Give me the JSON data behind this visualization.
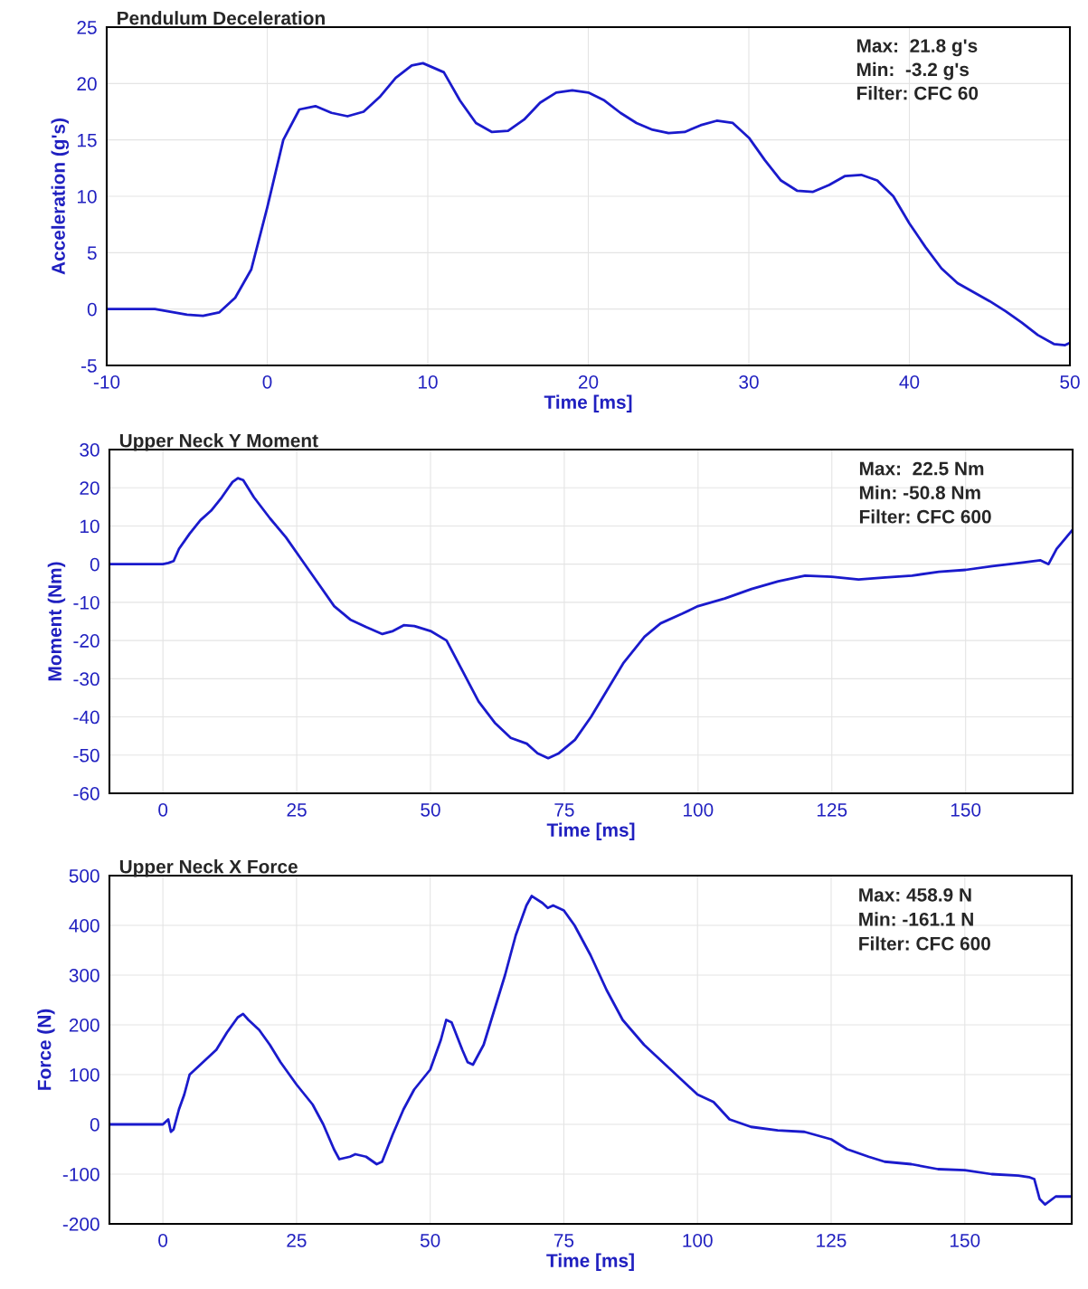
{
  "chart_data": [
    {
      "type": "line",
      "title": "Pendulum Deceleration",
      "xlabel": "Time [ms]",
      "ylabel": "Acceleration (g's)",
      "annotations": [
        "Max:  21.8 g's",
        "Min:  -3.2 g's",
        "Filter: CFC 60"
      ],
      "xlim": [
        -10,
        50
      ],
      "xticks": [
        -10,
        0,
        10,
        20,
        30,
        40,
        50
      ],
      "ylim": [
        -5,
        25
      ],
      "yticks": [
        -5,
        0,
        5,
        10,
        15,
        20,
        25
      ],
      "grid": true,
      "series": [
        {
          "color": "#1a1acc",
          "x": [
            -10,
            -7,
            -5,
            -4,
            -3,
            -2,
            -1,
            0,
            1,
            2,
            3,
            4,
            5,
            6,
            7,
            8,
            9,
            9.7,
            11,
            12,
            13,
            14,
            15,
            16,
            17,
            18,
            19,
            20,
            21,
            22,
            23,
            24,
            25,
            26,
            27,
            28,
            29,
            30,
            31,
            32,
            33,
            34,
            35,
            36,
            37,
            38,
            39,
            40,
            41,
            42,
            43,
            44,
            45,
            46,
            47,
            48,
            49,
            49.7,
            50
          ],
          "values": [
            0,
            0,
            -0.5,
            -0.6,
            -0.3,
            1,
            3.5,
            9,
            15,
            17.7,
            18,
            17.4,
            17.1,
            17.5,
            18.8,
            20.5,
            21.6,
            21.8,
            21,
            18.5,
            16.5,
            15.7,
            15.8,
            16.8,
            18.3,
            19.2,
            19.4,
            19.2,
            18.5,
            17.4,
            16.5,
            15.9,
            15.6,
            15.7,
            16.3,
            16.7,
            16.5,
            15.2,
            13.2,
            11.4,
            10.5,
            10.4,
            11,
            11.8,
            11.9,
            11.4,
            10,
            7.6,
            5.5,
            3.6,
            2.3,
            1.5,
            0.7,
            -0.2,
            -1.2,
            -2.3,
            -3.1,
            -3.2,
            -3.0
          ]
        }
      ]
    },
    {
      "type": "line",
      "title": "Upper Neck Y Moment",
      "xlabel": "Time [ms]",
      "ylabel": "Moment (Nm)",
      "annotations": [
        "Max:  22.5 Nm",
        "Min: -50.8 Nm",
        "Filter: CFC 600"
      ],
      "xlim": [
        -10,
        170
      ],
      "xticks": [
        0,
        25,
        50,
        75,
        100,
        125,
        150
      ],
      "ylim": [
        -60,
        30
      ],
      "yticks": [
        -60,
        -50,
        -40,
        -30,
        -20,
        -10,
        0,
        10,
        20,
        30
      ],
      "grid": true,
      "series": [
        {
          "color": "#1a1acc",
          "x": [
            -10,
            0,
            1,
            2,
            3,
            5,
            7,
            9,
            11,
            13,
            14,
            15,
            17,
            20,
            23,
            26,
            29,
            32,
            35,
            38,
            41,
            43,
            45,
            47,
            50,
            53,
            56,
            59,
            62,
            65,
            68,
            70,
            72,
            74,
            77,
            80,
            83,
            86,
            90,
            93,
            97,
            100,
            105,
            110,
            115,
            120,
            125,
            130,
            135,
            140,
            145,
            150,
            155,
            160,
            164,
            165.5,
            167,
            170
          ],
          "values": [
            0,
            0,
            0.3,
            0.8,
            4,
            8,
            11.5,
            14,
            17.5,
            21.5,
            22.5,
            22,
            17.5,
            12,
            7,
            1,
            -5,
            -11,
            -14.5,
            -16.5,
            -18.3,
            -17.5,
            -16,
            -16.2,
            -17.5,
            -20,
            -28,
            -36,
            -41.5,
            -45.5,
            -47,
            -49.5,
            -50.8,
            -49.5,
            -46,
            -40,
            -33,
            -26,
            -19,
            -15.5,
            -13,
            -11,
            -9,
            -6.5,
            -4.5,
            -3,
            -3.3,
            -4,
            -3.5,
            -3,
            -2,
            -1.5,
            -0.5,
            0.3,
            1,
            0,
            4,
            9
          ]
        }
      ]
    },
    {
      "type": "line",
      "title": "Upper Neck X Force",
      "xlabel": "Time [ms]",
      "ylabel": "Force (N)",
      "annotations": [
        "Max: 458.9 N",
        "Min: -161.1 N",
        "Filter: CFC 600"
      ],
      "xlim": [
        -10,
        170
      ],
      "xticks": [
        0,
        25,
        50,
        75,
        100,
        125,
        150
      ],
      "ylim": [
        -200,
        500
      ],
      "yticks": [
        -200,
        -100,
        0,
        100,
        200,
        300,
        400,
        500
      ],
      "grid": true,
      "series": [
        {
          "color": "#1a1acc",
          "x": [
            -10,
            0,
            1,
            1.5,
            2,
            3,
            4,
            5,
            6,
            8,
            10,
            12,
            14,
            15,
            16,
            18,
            20,
            22,
            25,
            28,
            30,
            32,
            33,
            35,
            36,
            38,
            40,
            41,
            43,
            45,
            47,
            50,
            52,
            53,
            54,
            56,
            57,
            58,
            60,
            62,
            64,
            66,
            68,
            69,
            71,
            72,
            73,
            75,
            77,
            80,
            83,
            86,
            90,
            95,
            100,
            103,
            106,
            110,
            115,
            120,
            125,
            128,
            132,
            135,
            140,
            145,
            150,
            155,
            160,
            162,
            163,
            164,
            165,
            167,
            170
          ],
          "values": [
            0,
            0,
            10,
            -15,
            -10,
            30,
            60,
            100,
            110,
            130,
            150,
            185,
            215,
            222,
            210,
            190,
            160,
            125,
            80,
            40,
            0,
            -50,
            -70,
            -65,
            -60,
            -65,
            -80,
            -75,
            -20,
            30,
            70,
            110,
            170,
            210,
            205,
            150,
            125,
            120,
            160,
            230,
            300,
            380,
            440,
            459,
            445,
            435,
            440,
            430,
            400,
            340,
            270,
            210,
            160,
            110,
            60,
            45,
            10,
            -5,
            -12,
            -15,
            -30,
            -50,
            -65,
            -75,
            -80,
            -90,
            -92,
            -100,
            -103,
            -106,
            -110,
            -150,
            -161,
            -145,
            -145
          ]
        }
      ]
    }
  ]
}
